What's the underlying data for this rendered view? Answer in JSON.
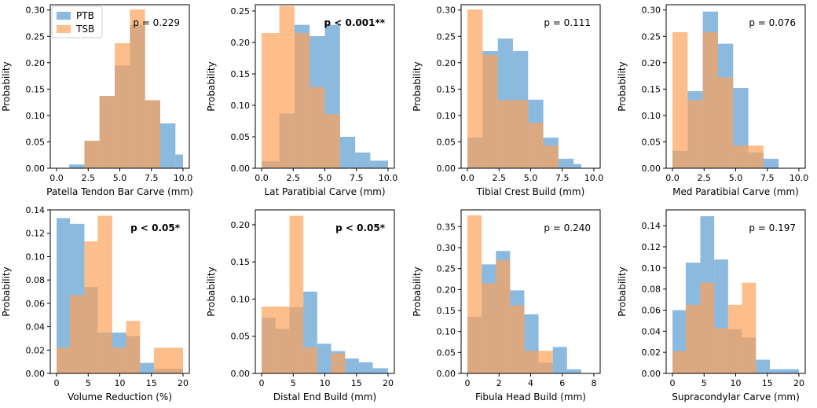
{
  "legend": {
    "series": [
      {
        "name": "PTB",
        "color": "#5b9bd0"
      },
      {
        "name": "TSB",
        "color": "#fca25a"
      }
    ]
  },
  "colors": {
    "ptb": "#5b9bd0",
    "tsb": "#fca25a",
    "axes": "#000000"
  },
  "chart_data": [
    {
      "type": "bar",
      "title": "",
      "xlabel": "Patella Tendon Bar Carve (mm)",
      "ylabel": "Probability",
      "xlim": [
        -0.5,
        10.5
      ],
      "ylim": [
        0,
        0.31
      ],
      "xticks": [
        0.0,
        2.5,
        5.0,
        7.5,
        10.0
      ],
      "xtick_labels": [
        "0.0",
        "2.5",
        "5.0",
        "7.5",
        "10.0"
      ],
      "yticks": [
        0,
        0.05,
        0.1,
        0.15,
        0.2,
        0.25,
        0.3
      ],
      "ytick_labels": [
        "0.00",
        "0.05",
        "0.10",
        "0.15",
        "0.20",
        "0.25",
        "0.30"
      ],
      "annotation": "p = 0.229",
      "annotation_bold": false,
      "series": [
        {
          "name": "PTB",
          "bin_edges": [
            1.0,
            2.2,
            3.4,
            4.6,
            5.8,
            7.0,
            8.2,
            9.4,
            10.0
          ],
          "values": [
            0.007,
            0.052,
            0.137,
            0.195,
            0.272,
            0.129,
            0.085,
            0.026
          ],
          "bin_edges_note": ""
        },
        {
          "name": "TSB",
          "bin_edges": [
            1.0,
            2.2,
            3.4,
            4.6,
            5.8,
            7.0,
            8.2,
            9.4,
            10.0
          ],
          "values": [
            0.0,
            0.052,
            0.137,
            0.237,
            0.301,
            0.129,
            0.0,
            0.0
          ]
        }
      ]
    },
    {
      "type": "bar",
      "title": "",
      "xlabel": "Lat Paratibial Carve (mm)",
      "ylabel": "Probability",
      "xlim": [
        -0.5,
        10.5
      ],
      "ylim": [
        0,
        0.26
      ],
      "xticks": [
        0.0,
        2.5,
        5.0,
        7.5,
        10.0
      ],
      "xtick_labels": [
        "0.0",
        "2.5",
        "5.0",
        "7.5",
        "10.0"
      ],
      "yticks": [
        0,
        0.05,
        0.1,
        0.15,
        0.2,
        0.25
      ],
      "ytick_labels": [
        "0.00",
        "0.05",
        "0.10",
        "0.15",
        "0.20",
        "0.25"
      ],
      "annotation": "p < 0.001**",
      "annotation_bold": true,
      "series": [
        {
          "name": "PTB",
          "bin_edges": [
            0.0,
            1.4,
            2.6,
            3.8,
            5.0,
            6.2,
            7.4,
            8.6,
            10.0
          ],
          "values": [
            0.011,
            0.087,
            0.228,
            0.21,
            0.228,
            0.05,
            0.025,
            0.012
          ]
        },
        {
          "name": "TSB",
          "bin_edges": [
            0.0,
            1.4,
            2.6,
            3.8,
            5.0,
            6.2,
            7.4,
            8.6,
            10.0
          ],
          "values": [
            0.215,
            0.258,
            0.215,
            0.129,
            0.086,
            0.0,
            0.0,
            0.0
          ]
        }
      ]
    },
    {
      "type": "bar",
      "title": "",
      "xlabel": "Tibial Crest Build (mm)",
      "ylabel": "Probability",
      "xlim": [
        -0.5,
        10.5
      ],
      "ylim": [
        0,
        0.31
      ],
      "xticks": [
        0.0,
        2.5,
        5.0,
        7.5,
        10.0
      ],
      "xtick_labels": [
        "0.0",
        "2.5",
        "5.0",
        "7.5",
        "10.0"
      ],
      "yticks": [
        0,
        0.05,
        0.1,
        0.15,
        0.2,
        0.25,
        0.3
      ],
      "ytick_labels": [
        "0.00",
        "0.05",
        "0.10",
        "0.15",
        "0.20",
        "0.25",
        "0.30"
      ],
      "annotation": "p = 0.111",
      "annotation_bold": false,
      "series": [
        {
          "name": "PTB",
          "bin_edges": [
            0.0,
            1.2,
            2.4,
            3.6,
            4.8,
            6.0,
            7.2,
            8.4,
            9.0
          ],
          "values": [
            0.058,
            0.222,
            0.246,
            0.222,
            0.13,
            0.058,
            0.018,
            0.008
          ]
        },
        {
          "name": "TSB",
          "bin_edges": [
            0.0,
            1.2,
            2.4,
            3.6,
            4.8,
            6.0,
            7.2,
            8.4,
            9.0
          ],
          "values": [
            0.301,
            0.215,
            0.129,
            0.129,
            0.086,
            0.043,
            0.0,
            0.0
          ]
        }
      ]
    },
    {
      "type": "bar",
      "title": "",
      "xlabel": "Med Paratibial Carve (mm)",
      "ylabel": "Probability",
      "xlim": [
        -0.5,
        10.5
      ],
      "ylim": [
        0,
        0.31
      ],
      "xticks": [
        0.0,
        2.5,
        5.0,
        7.5,
        10.0
      ],
      "xtick_labels": [
        "0.0",
        "2.5",
        "5.0",
        "7.5",
        "10.0"
      ],
      "yticks": [
        0,
        0.05,
        0.1,
        0.15,
        0.2,
        0.25,
        0.3
      ],
      "ytick_labels": [
        "0.00",
        "0.05",
        "0.10",
        "0.15",
        "0.20",
        "0.25",
        "0.30"
      ],
      "annotation": "p = 0.076",
      "annotation_bold": false,
      "series": [
        {
          "name": "PTB",
          "bin_edges": [
            0.0,
            1.2,
            2.4,
            3.6,
            4.8,
            6.0,
            7.2,
            8.4
          ],
          "values": [
            0.033,
            0.146,
            0.297,
            0.236,
            0.152,
            0.03,
            0.018
          ]
        },
        {
          "name": "TSB",
          "bin_edges": [
            0.0,
            1.2,
            2.4,
            3.6,
            4.8,
            6.0,
            7.2,
            8.4
          ],
          "values": [
            0.258,
            0.129,
            0.258,
            0.172,
            0.043,
            0.043,
            0.0
          ]
        }
      ]
    },
    {
      "type": "bar",
      "title": "",
      "xlabel": "Volume Reduction (%)",
      "ylabel": "Probability",
      "xlim": [
        -1.0,
        21.0
      ],
      "ylim": [
        0,
        0.14
      ],
      "xticks": [
        0,
        5,
        10,
        15,
        20
      ],
      "xtick_labels": [
        "0",
        "5",
        "10",
        "15",
        "20"
      ],
      "yticks": [
        0,
        0.02,
        0.04,
        0.06,
        0.08,
        0.1,
        0.12,
        0.14
      ],
      "ytick_labels": [
        "0.00",
        "0.02",
        "0.04",
        "0.06",
        "0.08",
        "0.10",
        "0.12",
        "0.14"
      ],
      "annotation": "p < 0.05*",
      "annotation_bold": true,
      "series": [
        {
          "name": "PTB",
          "bin_edges": [
            0.0,
            2.1,
            4.4,
            6.5,
            8.8,
            11.0,
            13.2,
            15.4,
            20.0
          ],
          "values": [
            0.133,
            0.128,
            0.074,
            0.035,
            0.035,
            0.032,
            0.009,
            0.004
          ]
        },
        {
          "name": "TSB",
          "bin_edges": [
            0.0,
            2.1,
            4.4,
            6.5,
            8.8,
            11.0,
            13.2,
            15.4,
            20.0
          ],
          "values": [
            0.022,
            0.067,
            0.113,
            0.135,
            0.022,
            0.045,
            0.0,
            0.022
          ]
        }
      ]
    },
    {
      "type": "bar",
      "title": "",
      "xlabel": "Distal End Build (mm)",
      "ylabel": "Probability",
      "xlim": [
        -1.0,
        21.0
      ],
      "ylim": [
        0,
        0.22
      ],
      "xticks": [
        0,
        5,
        10,
        15,
        20
      ],
      "xtick_labels": [
        "0",
        "5",
        "10",
        "15",
        "20"
      ],
      "yticks": [
        0,
        0.05,
        0.1,
        0.15,
        0.2
      ],
      "ytick_labels": [
        "0.00",
        "0.05",
        "0.10",
        "0.15",
        "0.20"
      ],
      "annotation": "p < 0.05*",
      "annotation_bold": true,
      "series": [
        {
          "name": "PTB",
          "bin_edges": [
            0.0,
            2.2,
            4.4,
            6.6,
            8.8,
            11.0,
            13.2,
            15.4,
            17.6,
            20.0
          ],
          "values": [
            0.075,
            0.06,
            0.089,
            0.11,
            0.04,
            0.03,
            0.02,
            0.015,
            0.007
          ]
        },
        {
          "name": "TSB",
          "bin_edges": [
            0.0,
            2.2,
            4.4,
            6.6,
            8.8,
            11.0,
            13.2,
            15.4,
            17.6,
            20.0
          ],
          "values": [
            0.09,
            0.09,
            0.212,
            0.035,
            0.0,
            0.027,
            0.0,
            0.0,
            0.0
          ]
        }
      ]
    },
    {
      "type": "bar",
      "title": "",
      "xlabel": "Fibula Head Build (mm)",
      "ylabel": "Probability",
      "xlim": [
        -0.4,
        8.4
      ],
      "ylim": [
        0,
        0.39
      ],
      "xticks": [
        0,
        2,
        4,
        6,
        8
      ],
      "xtick_labels": [
        "0",
        "2",
        "4",
        "6",
        "8"
      ],
      "yticks": [
        0,
        0.05,
        0.1,
        0.15,
        0.2,
        0.25,
        0.3,
        0.35
      ],
      "ytick_labels": [
        "0.00",
        "0.05",
        "0.10",
        "0.15",
        "0.20",
        "0.25",
        "0.30",
        "0.35"
      ],
      "annotation": "p = 0.240",
      "annotation_bold": false,
      "series": [
        {
          "name": "PTB",
          "bin_edges": [
            0.0,
            0.9,
            1.8,
            2.7,
            3.6,
            4.5,
            5.4,
            6.3,
            7.2
          ],
          "values": [
            0.135,
            0.26,
            0.292,
            0.198,
            0.141,
            0.026,
            0.063,
            0.01
          ]
        },
        {
          "name": "TSB",
          "bin_edges": [
            0.0,
            0.9,
            1.8,
            2.7,
            3.6,
            4.5,
            5.4,
            6.3,
            7.2
          ],
          "values": [
            0.377,
            0.215,
            0.27,
            0.162,
            0.054,
            0.054,
            0.0,
            0.0
          ]
        }
      ]
    },
    {
      "type": "bar",
      "title": "",
      "xlabel": "Supracondylar Carve (mm)",
      "ylabel": "Probability",
      "xlim": [
        -1.0,
        21.0
      ],
      "ylim": [
        0,
        0.155
      ],
      "xticks": [
        0,
        5,
        10,
        15,
        20
      ],
      "xtick_labels": [
        "0",
        "5",
        "10",
        "15",
        "20"
      ],
      "yticks": [
        0,
        0.02,
        0.04,
        0.06,
        0.08,
        0.1,
        0.12,
        0.14
      ],
      "ytick_labels": [
        "0.00",
        "0.02",
        "0.04",
        "0.06",
        "0.08",
        "0.10",
        "0.12",
        "0.14"
      ],
      "annotation": "p = 0.197",
      "annotation_bold": false,
      "series": [
        {
          "name": "PTB",
          "bin_edges": [
            0.0,
            2.1,
            4.4,
            6.6,
            8.8,
            11.0,
            13.2,
            15.4,
            20.0
          ],
          "values": [
            0.06,
            0.105,
            0.149,
            0.108,
            0.042,
            0.034,
            0.013,
            0.004
          ]
        },
        {
          "name": "TSB",
          "bin_edges": [
            0.0,
            2.1,
            4.4,
            6.6,
            8.8,
            11.0,
            13.2,
            15.4,
            20.0
          ],
          "values": [
            0.021,
            0.065,
            0.086,
            0.043,
            0.065,
            0.086,
            0.0,
            0.0
          ]
        }
      ]
    }
  ]
}
